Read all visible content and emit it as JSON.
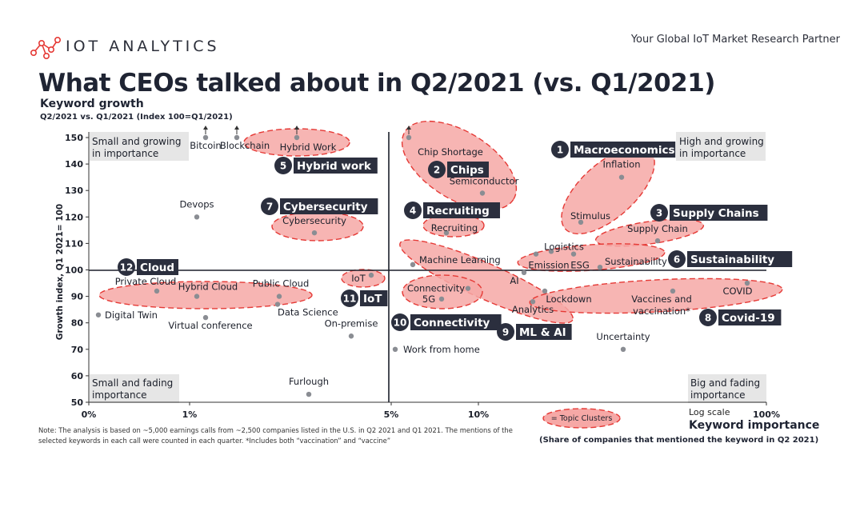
{
  "header": {
    "brand": "IOT ANALYTICS",
    "tagline": "Your Global IoT Market Research Partner",
    "title": "What CEOs talked about in Q2/2021 (vs. Q1/2021)"
  },
  "colors": {
    "cluster_fill": "#f6a8a6",
    "cluster_stroke": "#e53935",
    "point": "#8a8d93",
    "badge": "#2b2f3e",
    "quadrant_box": "#e6e6e6"
  },
  "chart_data": {
    "type": "scatter",
    "ylabel": "Keyword growth",
    "ylabel_sub": "Q2/2021 vs. Q1/2021 (Index 100=Q1/2021)",
    "yaxis_side_label": "Growth index, Q1 2021= 100",
    "xlabel": "Keyword importance",
    "xlabel_sub": "(Share of companies that mentioned the keyword in Q2 2021)",
    "x_scale": "log",
    "x_scale_label": "Log scale",
    "xticks": [
      "0%",
      "1%",
      "5%",
      "10%",
      "100%"
    ],
    "yticks": [
      50,
      60,
      70,
      80,
      90,
      100,
      110,
      120,
      130,
      140,
      150
    ],
    "ylim": [
      50,
      150
    ],
    "quadrants": {
      "top_left": "Small and growing in importance",
      "top_right": "High and growing in importance",
      "bottom_left": "Small and fading importance",
      "bottom_right": "Big and fading importance"
    },
    "points": [
      {
        "label": "Bitcoin",
        "y": 150,
        "arrow": true
      },
      {
        "label": "Blockchain",
        "y": 150,
        "arrow": true
      },
      {
        "label": "Hybrid Work",
        "y": 150,
        "arrow": true
      },
      {
        "label": "Chip Shortage",
        "y": 150,
        "arrow": true
      },
      {
        "label": "Inflation",
        "y": 135
      },
      {
        "label": "Semiconductor",
        "y": 129
      },
      {
        "label": "Devops",
        "y": 120
      },
      {
        "label": "Cybersecurity",
        "y": 114
      },
      {
        "label": "Recruiting",
        "y": 114
      },
      {
        "label": "Stimulus",
        "y": 118
      },
      {
        "label": "Supply Chain",
        "y": 111
      },
      {
        "label": "Logistics",
        "y": 107
      },
      {
        "label": "Emission",
        "y": 106
      },
      {
        "label": "ESG",
        "y": 106
      },
      {
        "label": "Sustainability",
        "y": 101
      },
      {
        "label": "Machine Learning",
        "y": 102
      },
      {
        "label": "AI",
        "y": 99
      },
      {
        "label": "IoT",
        "y": 98
      },
      {
        "label": "Private Cloud",
        "y": 92
      },
      {
        "label": "Hybrid Cloud",
        "y": 90
      },
      {
        "label": "Public Cloud",
        "y": 90
      },
      {
        "label": "Connectivity",
        "y": 93
      },
      {
        "label": "5G",
        "y": 89
      },
      {
        "label": "Lockdown",
        "y": 92
      },
      {
        "label": "Vaccines and vaccination*",
        "y": 92
      },
      {
        "label": "COVID",
        "y": 95
      },
      {
        "label": "Digital Twin",
        "y": 83
      },
      {
        "label": "Virtual conference",
        "y": 82
      },
      {
        "label": "Data Science",
        "y": 87
      },
      {
        "label": "Analytics",
        "y": 88
      },
      {
        "label": "On-premise",
        "y": 75
      },
      {
        "label": "Work from home",
        "y": 70
      },
      {
        "label": "Uncertainty",
        "y": 70
      },
      {
        "label": "Furlough",
        "y": 53
      }
    ],
    "clusters": [
      {
        "num": "1",
        "name": "Macroeconomics"
      },
      {
        "num": "2",
        "name": "Chips"
      },
      {
        "num": "3",
        "name": "Supply Chains"
      },
      {
        "num": "4",
        "name": "Recruiting"
      },
      {
        "num": "5",
        "name": "Hybrid work"
      },
      {
        "num": "6",
        "name": "Sustainability"
      },
      {
        "num": "7",
        "name": "Cybersecurity"
      },
      {
        "num": "8",
        "name": "Covid-19"
      },
      {
        "num": "9",
        "name": "ML & AI"
      },
      {
        "num": "10",
        "name": "Connectivity"
      },
      {
        "num": "11",
        "name": "IoT"
      },
      {
        "num": "12",
        "name": "Cloud"
      }
    ],
    "legend_label": "= Topic Clusters",
    "note": "Note: The analysis is based on ~5,000 earnings calls from ~2,500 companies listed in the U.S. in Q2 2021 and Q1 2021. The mentions of the selected keywords in each call were counted in each quarter. *Includes both “vaccination” and “vaccine”"
  }
}
